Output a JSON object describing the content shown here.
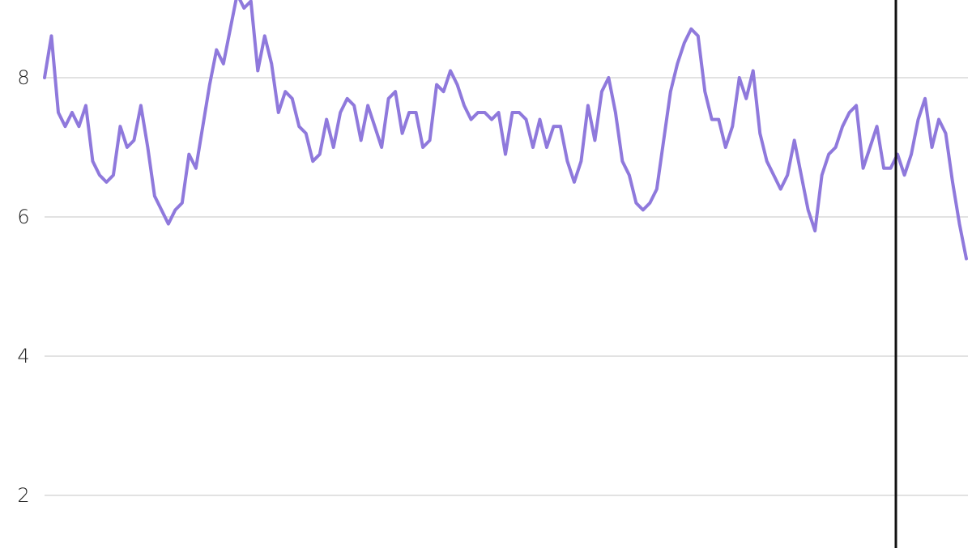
{
  "chart_data": {
    "type": "line",
    "series": [
      {
        "color": "#8f79dc",
        "values": [
          8.0,
          8.6,
          7.5,
          7.3,
          7.5,
          7.3,
          7.6,
          6.8,
          6.6,
          6.5,
          6.6,
          7.3,
          7.0,
          7.1,
          7.6,
          7.0,
          6.3,
          6.1,
          5.9,
          6.1,
          6.2,
          6.9,
          6.7,
          7.3,
          7.9,
          8.4,
          8.2,
          8.7,
          9.2,
          9.0,
          9.1,
          8.1,
          8.6,
          8.2,
          7.5,
          7.8,
          7.7,
          7.3,
          7.2,
          6.8,
          6.9,
          7.4,
          7.0,
          7.5,
          7.7,
          7.6,
          7.1,
          7.6,
          7.3,
          7.0,
          7.7,
          7.8,
          7.2,
          7.5,
          7.5,
          7.0,
          7.1,
          7.9,
          7.8,
          8.1,
          7.9,
          7.6,
          7.4,
          7.5,
          7.5,
          7.4,
          7.5,
          6.9,
          7.5,
          7.5,
          7.4,
          7.0,
          7.4,
          7.0,
          7.3,
          7.3,
          6.8,
          6.5,
          6.8,
          7.6,
          7.1,
          7.8,
          8.0,
          7.5,
          6.8,
          6.6,
          6.2,
          6.1,
          6.2,
          6.4,
          7.1,
          7.8,
          8.2,
          8.5,
          8.7,
          8.6,
          7.8,
          7.4,
          7.4,
          7.0,
          7.3,
          8.0,
          7.7,
          8.1,
          7.2,
          6.8,
          6.6,
          6.4,
          6.6,
          7.1,
          6.6,
          6.1,
          5.8,
          6.6,
          6.9,
          7.0,
          7.3,
          7.5,
          7.6,
          6.7,
          7.0,
          7.3,
          6.7,
          6.7,
          6.9,
          6.6,
          6.9,
          7.4,
          7.7,
          7.0,
          7.4,
          7.2,
          6.5,
          5.9,
          5.4
        ]
      }
    ],
    "ylim": [
      1.244,
      9.116
    ],
    "yticks": [
      2,
      4,
      6,
      8
    ],
    "grid": true
  }
}
